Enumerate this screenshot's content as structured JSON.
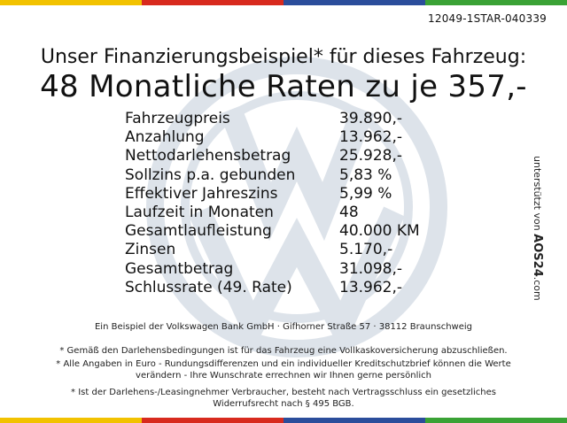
{
  "reference_code": "12049-1STAR-040339",
  "headline": {
    "line1": "Unser Finanzierungsbeispiel* für dieses Fahrzeug:",
    "line2": "48 Monatliche Raten zu je 357,-"
  },
  "finance_rows": [
    {
      "label": "Fahrzeugpreis",
      "value": "39.890,-"
    },
    {
      "label": "Anzahlung",
      "value": "13.962,-"
    },
    {
      "label": "Nettodarlehensbetrag",
      "value": "25.928,-"
    },
    {
      "label": "Sollzins p.a. gebunden",
      "value": "5,83 %"
    },
    {
      "label": "Effektiver Jahreszins",
      "value": "5,99 %"
    },
    {
      "label": "Laufzeit in Monaten",
      "value": "48"
    },
    {
      "label": "Gesamtlaufleistung",
      "value": "40.000 KM"
    },
    {
      "label": "Zinsen",
      "value": "5.170,-"
    },
    {
      "label": "Gesamtbetrag",
      "value": "31.098,-"
    },
    {
      "label": "Schlussrate (49. Rate)",
      "value": "13.962,-"
    }
  ],
  "footer": {
    "bank_line": "Ein Beispiel der Volkswagen Bank GmbH · Gifhorner Straße 57 · 38112 Braunschweig",
    "note_insurance": "* Gemäß den Darlehensbedingungen ist für das Fahrzeug eine Vollkaskoversicherung abzuschließen.",
    "note_amounts_1": "* Alle Angaben in Euro - Rundungsdifferenzen und ein individueller Kreditschutzbrief können die Werte",
    "note_amounts_2": "verändern - Ihre Wunschrate errechnen wir Ihnen gerne persönlich",
    "note_withdrawal_1": "* Ist der Darlehens-/Leasingnehmer Verbraucher, besteht nach Vertragsschluss ein gesetzliches",
    "note_withdrawal_2": "Widerrufsrecht nach § 495 BGB."
  },
  "sidebar": {
    "supported_by": "unterstützt von",
    "brand": "AOS24",
    "domain": ".com"
  },
  "colors": {
    "stripe_yellow": "#f2c200",
    "stripe_red": "#d82a1e",
    "stripe_blue": "#2b4d9b",
    "stripe_green": "#3aa235",
    "watermark": "#dde3ea"
  }
}
